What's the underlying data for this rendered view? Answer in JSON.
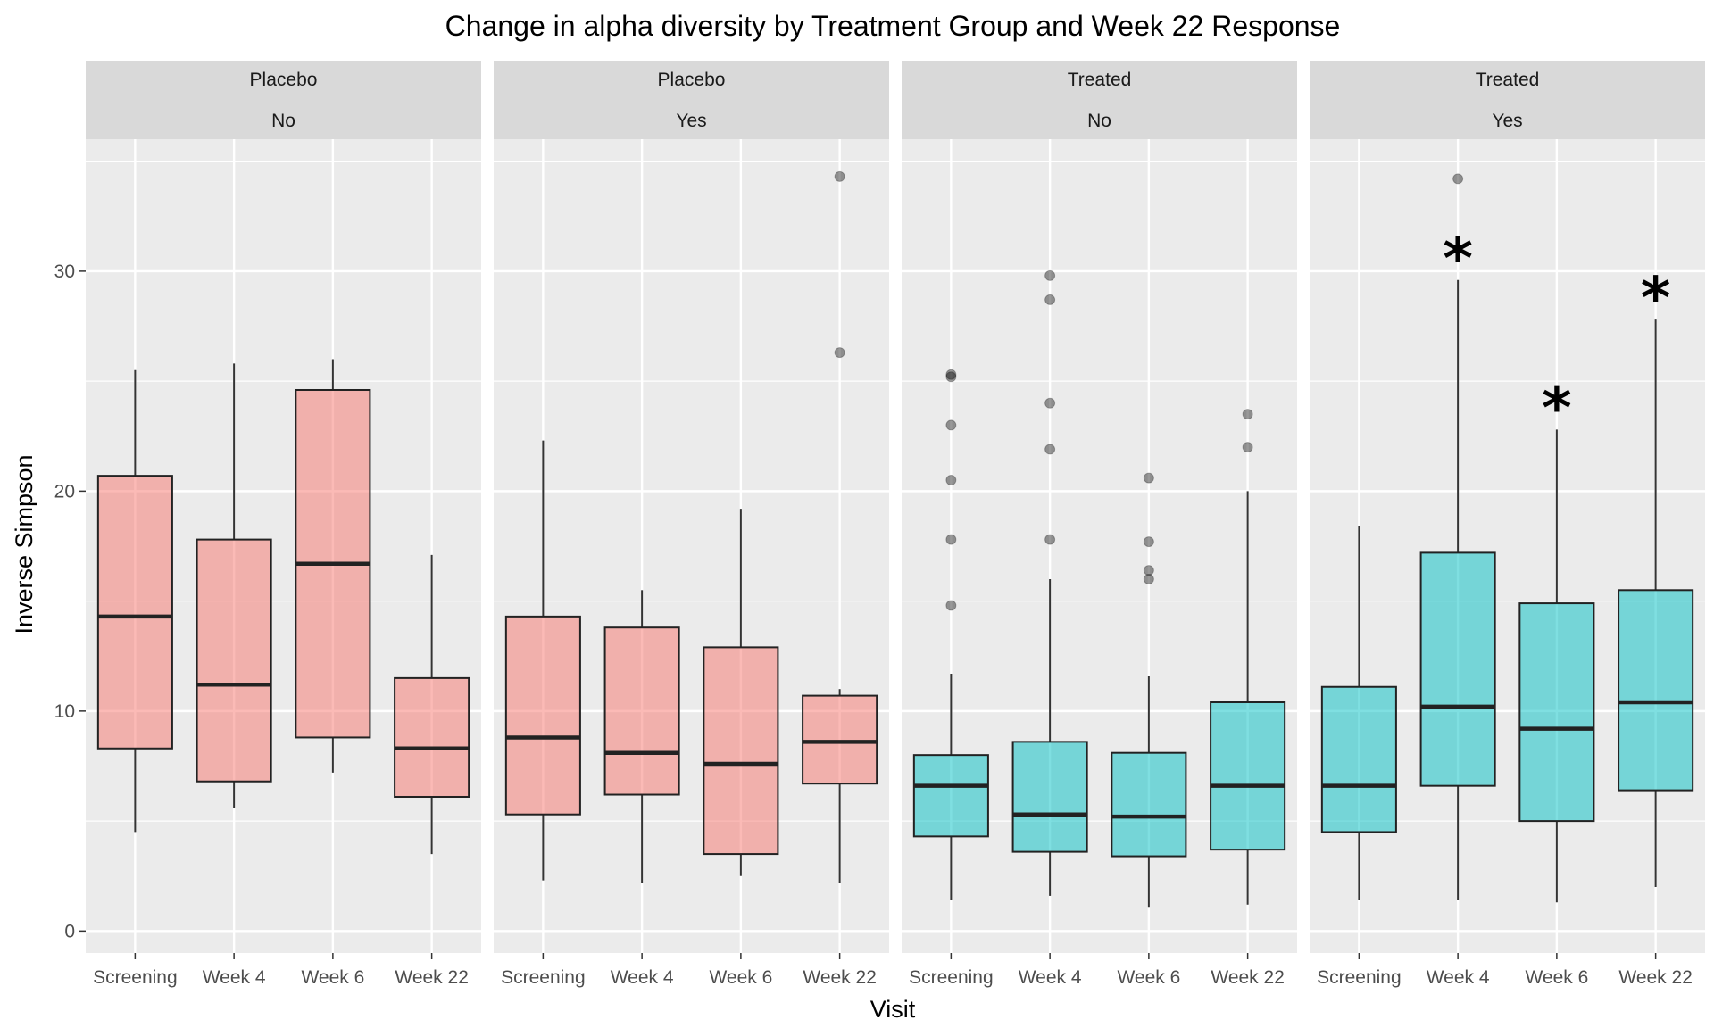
{
  "chart_data": {
    "type": "boxplot",
    "title": "Change in alpha diversity by Treatment Group and Week 22 Response",
    "xlabel": "Visit",
    "ylabel": "Inverse Simpson",
    "ylim": [
      -1,
      36
    ],
    "yticks": [
      0,
      10,
      20,
      30
    ],
    "categories": [
      "Screening",
      "Week 4",
      "Week 6",
      "Week 22"
    ],
    "colors": {
      "Placebo": "#F8766D",
      "Treated": "#00BFC4"
    },
    "panels": [
      {
        "group": "Placebo",
        "response": "No",
        "boxes": [
          {
            "visit": "Screening",
            "min": 4.5,
            "q1": 8.3,
            "median": 14.3,
            "q3": 20.7,
            "max": 25.5,
            "outliers": []
          },
          {
            "visit": "Week 4",
            "min": 5.6,
            "q1": 6.8,
            "median": 11.2,
            "q3": 17.8,
            "max": 25.8,
            "outliers": []
          },
          {
            "visit": "Week 6",
            "min": 7.2,
            "q1": 8.8,
            "median": 16.7,
            "q3": 24.6,
            "max": 26.0,
            "outliers": []
          },
          {
            "visit": "Week 22",
            "min": 3.5,
            "q1": 6.1,
            "median": 8.3,
            "q3": 11.5,
            "max": 17.1,
            "outliers": []
          }
        ],
        "annotations": []
      },
      {
        "group": "Placebo",
        "response": "Yes",
        "boxes": [
          {
            "visit": "Screening",
            "min": 2.3,
            "q1": 5.3,
            "median": 8.8,
            "q3": 14.3,
            "max": 22.3,
            "outliers": []
          },
          {
            "visit": "Week 4",
            "min": 2.2,
            "q1": 6.2,
            "median": 8.1,
            "q3": 13.8,
            "max": 15.5,
            "outliers": []
          },
          {
            "visit": "Week 6",
            "min": 2.5,
            "q1": 3.5,
            "median": 7.6,
            "q3": 12.9,
            "max": 19.2,
            "outliers": []
          },
          {
            "visit": "Week 22",
            "min": 2.2,
            "q1": 6.7,
            "median": 8.6,
            "q3": 10.7,
            "max": 11.0,
            "outliers": [
              26.3,
              34.3
            ]
          }
        ],
        "annotations": []
      },
      {
        "group": "Treated",
        "response": "No",
        "boxes": [
          {
            "visit": "Screening",
            "min": 1.4,
            "q1": 4.3,
            "median": 6.6,
            "q3": 8.0,
            "max": 11.7,
            "outliers": [
              14.8,
              17.8,
              20.5,
              23.0,
              25.2,
              25.3
            ]
          },
          {
            "visit": "Week 4",
            "min": 1.6,
            "q1": 3.6,
            "median": 5.3,
            "q3": 8.6,
            "max": 16.0,
            "outliers": [
              17.8,
              21.9,
              24.0,
              28.7,
              29.8
            ]
          },
          {
            "visit": "Week 6",
            "min": 1.1,
            "q1": 3.4,
            "median": 5.2,
            "q3": 8.1,
            "max": 11.6,
            "outliers": [
              16.0,
              16.4,
              17.7,
              20.6
            ]
          },
          {
            "visit": "Week 22",
            "min": 1.2,
            "q1": 3.7,
            "median": 6.6,
            "q3": 10.4,
            "max": 20.0,
            "outliers": [
              22.0,
              23.5
            ]
          }
        ],
        "annotations": []
      },
      {
        "group": "Treated",
        "response": "Yes",
        "boxes": [
          {
            "visit": "Screening",
            "min": 1.4,
            "q1": 4.5,
            "median": 6.6,
            "q3": 11.1,
            "max": 18.4,
            "outliers": []
          },
          {
            "visit": "Week 4",
            "min": 1.4,
            "q1": 6.6,
            "median": 10.2,
            "q3": 17.2,
            "max": 29.6,
            "outliers": [
              34.2
            ]
          },
          {
            "visit": "Week 6",
            "min": 1.3,
            "q1": 5.0,
            "median": 9.2,
            "q3": 14.9,
            "max": 22.8,
            "outliers": []
          },
          {
            "visit": "Week 22",
            "min": 2.0,
            "q1": 6.4,
            "median": 10.4,
            "q3": 15.5,
            "max": 27.8,
            "outliers": []
          }
        ],
        "annotations": [
          {
            "visit": "Week 4",
            "label": "*"
          },
          {
            "visit": "Week 6",
            "label": "*"
          },
          {
            "visit": "Week 22",
            "label": "*"
          }
        ]
      }
    ]
  }
}
